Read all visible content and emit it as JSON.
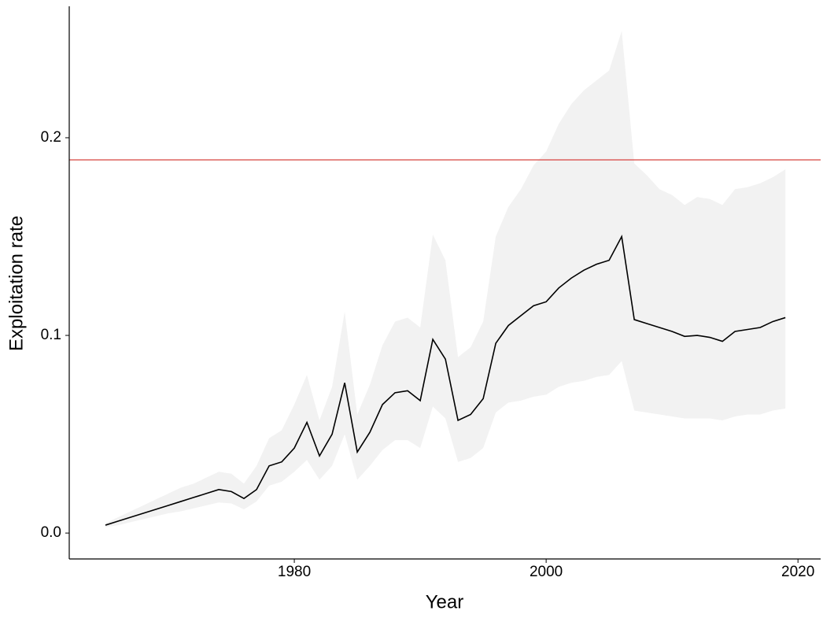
{
  "chart_data": {
    "type": "line",
    "x_label": "Year",
    "y_label": "Exploitation rate",
    "x": [
      1965,
      1966,
      1967,
      1968,
      1969,
      1970,
      1971,
      1972,
      1973,
      1974,
      1975,
      1976,
      1977,
      1978,
      1979,
      1980,
      1981,
      1982,
      1983,
      1984,
      1985,
      1986,
      1987,
      1988,
      1989,
      1990,
      1991,
      1992,
      1993,
      1994,
      1995,
      1996,
      1997,
      1998,
      1999,
      2000,
      2001,
      2002,
      2003,
      2004,
      2005,
      2006,
      2007,
      2008,
      2009,
      2010,
      2011,
      2012,
      2013,
      2014,
      2015,
      2016,
      2017,
      2018,
      2019
    ],
    "values": [
      0.004,
      0.006,
      0.008,
      0.01,
      0.012,
      0.014,
      0.016,
      0.018,
      0.02,
      0.022,
      0.021,
      0.0175,
      0.022,
      0.034,
      0.036,
      0.043,
      0.056,
      0.039,
      0.05,
      0.076,
      0.041,
      0.051,
      0.065,
      0.071,
      0.072,
      0.067,
      0.098,
      0.088,
      0.057,
      0.06,
      0.068,
      0.096,
      0.105,
      0.11,
      0.115,
      0.117,
      0.124,
      0.129,
      0.133,
      0.136,
      0.138,
      0.15,
      0.108,
      0.106,
      0.104,
      0.102,
      0.0995,
      0.1,
      0.099,
      0.097,
      0.102,
      0.103,
      0.104,
      0.107,
      0.109
    ],
    "upper": [
      0.005,
      0.008,
      0.011,
      0.014,
      0.017,
      0.02,
      0.023,
      0.025,
      0.028,
      0.031,
      0.03,
      0.025,
      0.034,
      0.048,
      0.052,
      0.065,
      0.08,
      0.057,
      0.074,
      0.112,
      0.06,
      0.075,
      0.095,
      0.107,
      0.109,
      0.104,
      0.151,
      0.138,
      0.089,
      0.094,
      0.107,
      0.15,
      0.165,
      0.174,
      0.186,
      0.193,
      0.207,
      0.217,
      0.224,
      0.229,
      0.234,
      0.254,
      0.187,
      0.181,
      0.174,
      0.171,
      0.166,
      0.17,
      0.169,
      0.166,
      0.174,
      0.175,
      0.177,
      0.18,
      0.184
    ],
    "lower": [
      0.003,
      0.004,
      0.0055,
      0.007,
      0.0085,
      0.01,
      0.011,
      0.0125,
      0.014,
      0.0155,
      0.015,
      0.012,
      0.016,
      0.024,
      0.026,
      0.031,
      0.037,
      0.027,
      0.034,
      0.05,
      0.027,
      0.034,
      0.042,
      0.047,
      0.047,
      0.043,
      0.064,
      0.058,
      0.036,
      0.038,
      0.043,
      0.061,
      0.066,
      0.067,
      0.069,
      0.07,
      0.074,
      0.076,
      0.077,
      0.079,
      0.08,
      0.087,
      0.062,
      0.061,
      0.06,
      0.059,
      0.058,
      0.058,
      0.058,
      0.057,
      0.059,
      0.06,
      0.06,
      0.062,
      0.063
    ],
    "color": "#000000",
    "band_color": "#f2f2f2",
    "reference_line": 0.1888,
    "reference_color": "#d9534f",
    "xlim": [
      1962.125,
      2021.8
    ],
    "ylim": [
      -0.0131,
      0.2665
    ],
    "xticks": [
      1980,
      2000,
      2020
    ],
    "yticks": [
      {
        "value": 0,
        "label": "0.0"
      },
      0.1,
      0.2
    ]
  }
}
